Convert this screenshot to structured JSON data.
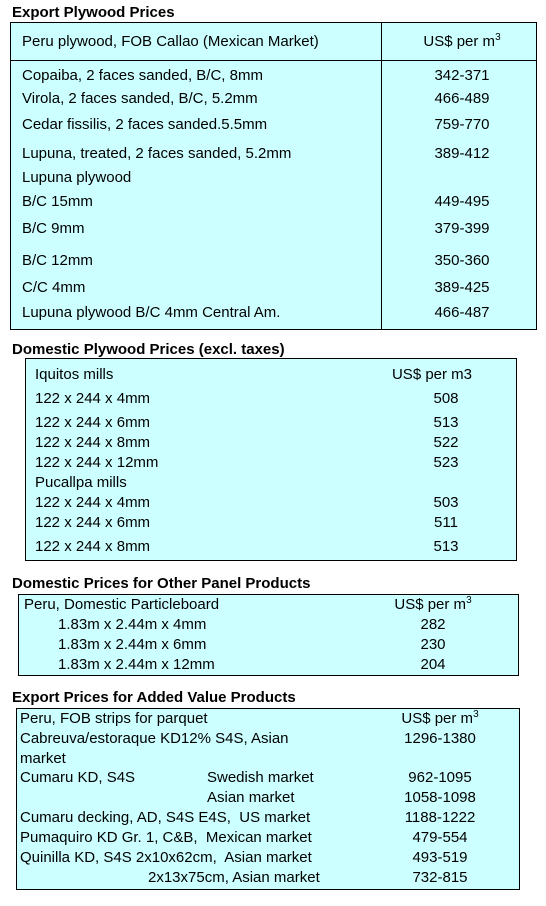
{
  "export_plywood": {
    "title": "Export Plywood Prices",
    "header": {
      "item": "Peru plywood, FOB Callao (Mexican Market)",
      "unit": "US$ per m",
      "unit_sup": "3"
    },
    "rows": [
      {
        "item": "Copaiba, 2 faces sanded, B/C, 8mm",
        "price": "342-371"
      },
      {
        "item": "Virola, 2 faces sanded, B/C, 5.2mm",
        "price": "466-489"
      },
      {
        "item": "Cedar fissilis, 2 faces sanded.5.5mm",
        "price": "759-770"
      },
      {
        "item": "Lupuna, treated, 2 faces sanded, 5.2mm",
        "price": "389-412"
      },
      {
        "item": "Lupuna plywood"
      },
      {
        "item": "B/C 15mm",
        "price": "449-495"
      },
      {
        "item": "B/C 9mm",
        "price": "379-399"
      },
      {
        "item": "B/C 12mm",
        "price": "350-360"
      },
      {
        "item": "C/C 4mm",
        "price": "389-425"
      },
      {
        "item": "Lupuna plywood B/C 4mm Central Am.",
        "price": "466-487"
      }
    ]
  },
  "domestic_plywood": {
    "title": "Domestic Plywood Prices (excl. taxes)",
    "header": {
      "item": "Iquitos mills",
      "unit": "US$ per m3"
    },
    "rows": [
      {
        "item": "122 x 244 x 4mm",
        "price": 508
      },
      {
        "item": "122 x 244 x 6mm",
        "price": 513
      },
      {
        "item": "122 x 244 x 8mm",
        "price": 522
      },
      {
        "item": "122 x 244 x 12mm",
        "price": 523
      },
      {
        "item": "Pucallpa mills"
      },
      {
        "item": "122 x 244 x 4mm",
        "price": 503
      },
      {
        "item": "122 x 244 x 6mm",
        "price": 511
      },
      {
        "item": "122 x 244 x 8mm",
        "price": 513
      }
    ]
  },
  "other_panels": {
    "title": "Domestic Prices for Other Panel Products",
    "header": {
      "item": "Peru, Domestic Particleboard",
      "unit": "US$ per m",
      "unit_sup": "3"
    },
    "rows": [
      {
        "item": "1.83m x 2.44m x 4mm",
        "price": 282
      },
      {
        "item": "1.83m x 2.44m x 6mm",
        "price": 230
      },
      {
        "item": "1.83m x 2.44m x 12mm",
        "price": 204
      }
    ]
  },
  "added_value": {
    "title": "Export Prices for Added Value Products",
    "header": {
      "item": "Peru, FOB strips for parquet",
      "unit": "US$ per m",
      "unit_sup": "3"
    },
    "rows": [
      {
        "item": "Cabreuva/estoraque KD12% S4S, Asian",
        "price": "1296-1380"
      },
      {
        "item": "market"
      },
      {
        "item": "Cumaru KD, S4S",
        "market": "Swedish market",
        "price": "962-1095"
      },
      {
        "market": "Asian market",
        "price": "1058-1098"
      },
      {
        "item": "Cumaru decking, AD, S4S E4S,  US market",
        "price": "1188-1222"
      },
      {
        "item": "Pumaquiro KD Gr. 1, C&B,  Mexican market",
        "price": "479-554"
      },
      {
        "item": "Quinilla KD, S4S 2x10x62cm,  Asian market",
        "price": "493-519"
      },
      {
        "item": "2x13x75cm, Asian market",
        "price": "732-815"
      }
    ]
  }
}
